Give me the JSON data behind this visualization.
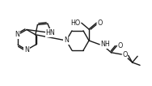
{
  "bg_color": "#ffffff",
  "line_color": "#1a1a1a",
  "line_width": 1.0,
  "font_size": 5.8,
  "dpi": 100,
  "figw": 1.86,
  "figh": 1.04,
  "xlim": [
    0,
    186
  ],
  "ylim": [
    0,
    104
  ]
}
